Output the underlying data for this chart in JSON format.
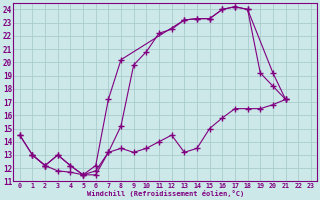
{
  "xlabel": "Windchill (Refroidissement éolien,°C)",
  "bg_color": "#cce8e8",
  "line_color": "#800080",
  "grid_color": "#aacccc",
  "xlim": [
    -0.5,
    23.5
  ],
  "ylim": [
    11,
    24.5
  ],
  "xticks": [
    0,
    1,
    2,
    3,
    4,
    5,
    6,
    7,
    8,
    9,
    10,
    11,
    12,
    13,
    14,
    15,
    16,
    17,
    18,
    19,
    20,
    21,
    22,
    23
  ],
  "yticks": [
    11,
    12,
    13,
    14,
    15,
    16,
    17,
    18,
    19,
    20,
    21,
    22,
    23,
    24
  ],
  "line1_x": [
    0,
    1,
    2,
    3,
    4,
    5,
    6,
    7,
    8,
    9,
    10,
    11,
    12,
    13,
    14,
    15,
    16,
    17,
    18,
    19,
    20,
    21
  ],
  "line1_y": [
    14.5,
    13,
    12.2,
    11.8,
    11.7,
    11.5,
    11.5,
    13.2,
    15.2,
    19.8,
    20.8,
    22.2,
    22.5,
    23.2,
    23.3,
    23.3,
    24.0,
    24.2,
    24.0,
    19.2,
    18.2,
    17.2
  ],
  "line2_x": [
    0,
    1,
    2,
    3,
    4,
    5,
    6,
    7,
    8,
    13,
    14,
    15,
    16,
    17,
    18,
    20,
    21
  ],
  "line2_y": [
    14.5,
    13,
    12.2,
    13.0,
    12.2,
    11.5,
    12.2,
    17.2,
    20.2,
    23.2,
    23.3,
    23.3,
    24.0,
    24.2,
    24.0,
    19.2,
    17.2
  ],
  "line3_x": [
    1,
    2,
    3,
    4,
    5,
    6,
    7,
    8,
    9,
    10,
    11,
    12,
    13,
    14,
    15,
    16,
    17,
    18,
    19,
    20,
    21
  ],
  "line3_y": [
    13.0,
    12.2,
    13.0,
    12.2,
    11.5,
    11.8,
    13.2,
    13.5,
    13.2,
    13.5,
    14.0,
    14.5,
    13.2,
    13.5,
    15.0,
    15.8,
    16.5,
    16.5,
    16.5,
    16.8,
    17.2
  ]
}
